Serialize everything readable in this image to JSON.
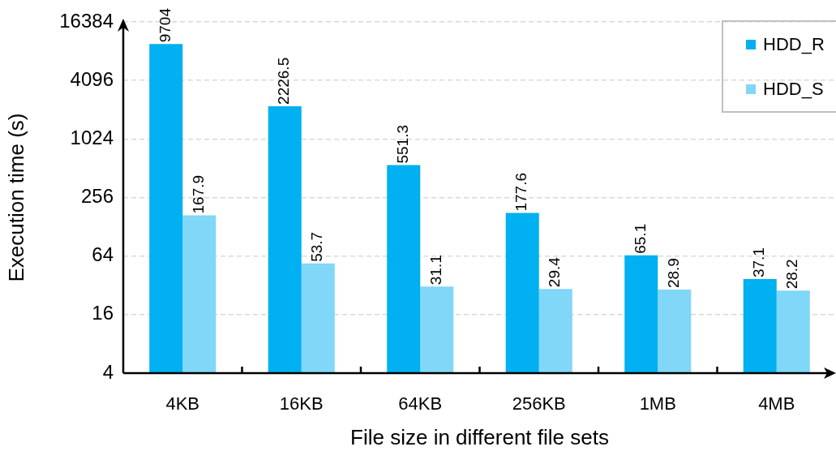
{
  "chart_data": {
    "type": "bar",
    "xlabel": "File size in different file sets",
    "ylabel": "Execution time (s)",
    "categories": [
      "4KB",
      "16KB",
      "64KB",
      "256KB",
      "1MB",
      "4MB"
    ],
    "series": [
      {
        "name": "HDD_R",
        "color": "#00b0f0",
        "values": [
          9704,
          2226.5,
          551.3,
          177.6,
          65.1,
          37.1
        ]
      },
      {
        "name": "HDD_S",
        "color": "#80d7f7",
        "values": [
          167.9,
          53.7,
          31.1,
          29.4,
          28.9,
          28.2
        ]
      }
    ],
    "log": true,
    "ylim": [
      4,
      16384
    ],
    "yticks": [
      4,
      16,
      64,
      256,
      1024,
      4096,
      16384
    ],
    "grid": "y",
    "legend": "top right",
    "data_labels": true
  }
}
